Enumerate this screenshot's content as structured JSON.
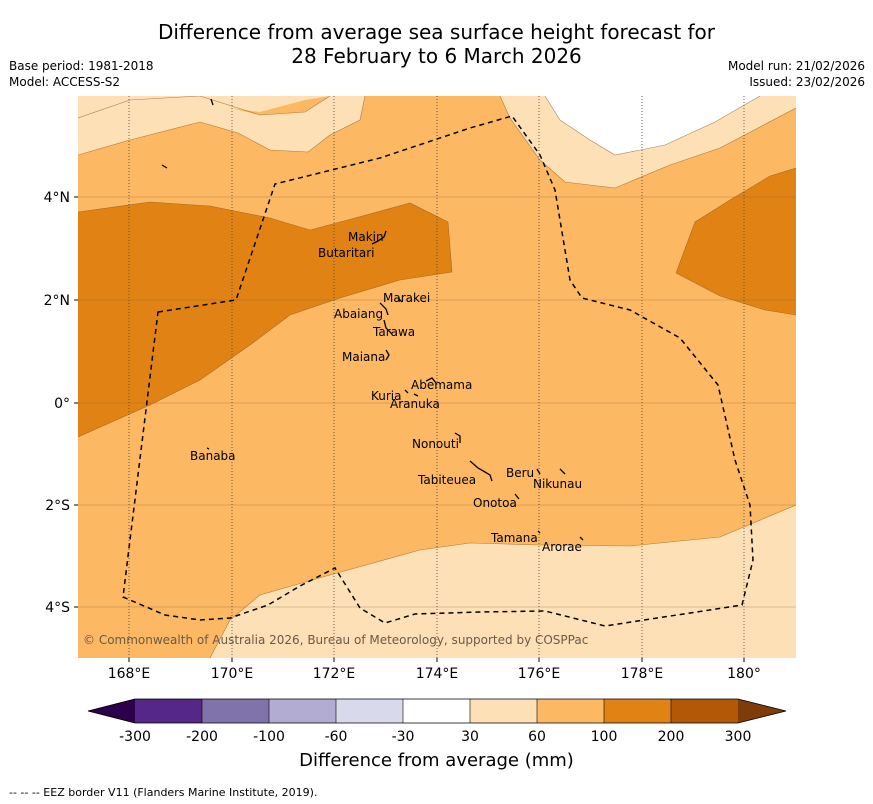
{
  "title": {
    "line1": "Difference from average sea surface height forecast for",
    "line2": "28 February to 6 March 2026"
  },
  "meta_left": {
    "base_period": "Base period: 1981-2018",
    "model": "Model: ACCESS-S2"
  },
  "meta_right": {
    "model_run": "Model run: 21/02/2026",
    "issued": "Issued: 23/02/2026"
  },
  "map": {
    "lat_labels": [
      "4°N",
      "2°N",
      "0°",
      "2°S",
      "4°S"
    ],
    "lon_labels": [
      "168°E",
      "170°E",
      "172°E",
      "174°E",
      "176°E",
      "178°E",
      "180°"
    ],
    "places": [
      "Makin",
      "Butaritari",
      "Marakei",
      "Abaiang",
      "Tarawa",
      "Maiana",
      "Abemama",
      "Kuria",
      "Aranuka",
      "Nonouti",
      "Banaba",
      "Beru",
      "Tabiteuea",
      "Nikunau",
      "Onotoa",
      "Tamana",
      "Arorae"
    ],
    "copyright": "© Commonwealth of Australia 2026, Bureau of Meteorology, supported by COSPPac"
  },
  "colorbar": {
    "ticks": [
      "-300",
      "-200",
      "-100",
      "-60",
      "-30",
      "30",
      "60",
      "100",
      "200",
      "300"
    ],
    "colors": [
      "#2d004b",
      "#542788",
      "#8073ac",
      "#b2abd2",
      "#d8daeb",
      "#ffffff",
      "#fee0b6",
      "#fdb863",
      "#e08214",
      "#b35806",
      "#7f3b08"
    ],
    "title": "Difference from average (mm)"
  },
  "footer": "--  --  -- EEZ border V11 (Flanders Marine Institute, 2019)."
}
